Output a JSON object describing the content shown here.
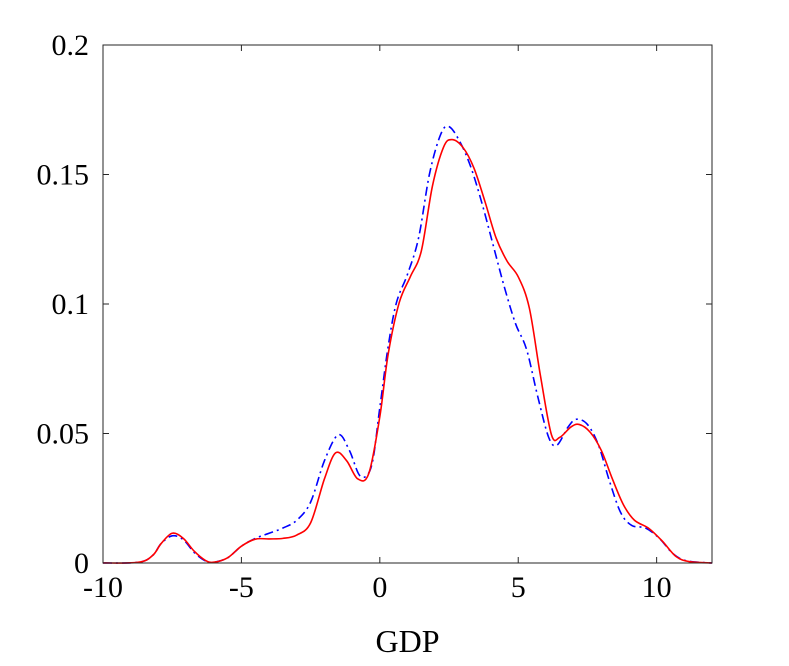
{
  "chart_data": {
    "type": "line",
    "xlabel": "GDP",
    "ylabel": "",
    "xlim": [
      -10,
      12
    ],
    "ylim": [
      0,
      0.2
    ],
    "grid": false,
    "legend": "none",
    "xticks": [
      -10,
      -5,
      0,
      5,
      10
    ],
    "xtick_labels": [
      "-10",
      "-5",
      "0",
      "5",
      "10"
    ],
    "yticks": [
      0,
      0.05,
      0.1,
      0.15,
      0.2
    ],
    "ytick_labels": [
      "0",
      "0.05",
      "0.1",
      "0.15",
      "0.2"
    ],
    "series": [
      {
        "color": "#0000ff",
        "style": "dashdot",
        "points": [
          [
            -10,
            0
          ],
          [
            -8.7,
            0.0003
          ],
          [
            -8.2,
            0.003
          ],
          [
            -7.9,
            0.0075
          ],
          [
            -7.5,
            0.0105
          ],
          [
            -7.1,
            0.009
          ],
          [
            -6.7,
            0.004
          ],
          [
            -6.3,
            0.0008
          ],
          [
            -6.0,
            0.0003
          ],
          [
            -5.5,
            0.002
          ],
          [
            -5.0,
            0.0065
          ],
          [
            -4.5,
            0.0095
          ],
          [
            -4.0,
            0.0115
          ],
          [
            -3.5,
            0.0135
          ],
          [
            -3.0,
            0.0165
          ],
          [
            -2.5,
            0.0235
          ],
          [
            -2.0,
            0.0395
          ],
          [
            -1.5,
            0.0495
          ],
          [
            -1.1,
            0.0435
          ],
          [
            -0.7,
            0.0335
          ],
          [
            -0.3,
            0.0375
          ],
          [
            0.0,
            0.06
          ],
          [
            0.3,
            0.0835
          ],
          [
            0.6,
            0.1005
          ],
          [
            1.0,
            0.1115
          ],
          [
            1.4,
            0.1255
          ],
          [
            1.8,
            0.1505
          ],
          [
            2.2,
            0.1655
          ],
          [
            2.5,
            0.1685
          ],
          [
            2.9,
            0.1625
          ],
          [
            3.3,
            0.1525
          ],
          [
            3.7,
            0.1385
          ],
          [
            4.1,
            0.1225
          ],
          [
            4.5,
            0.1065
          ],
          [
            4.9,
            0.0925
          ],
          [
            5.3,
            0.0825
          ],
          [
            5.7,
            0.0645
          ],
          [
            6.1,
            0.0485
          ],
          [
            6.4,
            0.0455
          ],
          [
            6.8,
            0.0525
          ],
          [
            7.1,
            0.0555
          ],
          [
            7.5,
            0.0535
          ],
          [
            7.9,
            0.0455
          ],
          [
            8.3,
            0.0315
          ],
          [
            8.7,
            0.0195
          ],
          [
            9.1,
            0.0145
          ],
          [
            9.6,
            0.0135
          ],
          [
            10.1,
            0.0095
          ],
          [
            10.6,
            0.0035
          ],
          [
            11.1,
            0.0008
          ],
          [
            12,
            0
          ]
        ]
      },
      {
        "color": "#ff0000",
        "style": "solid",
        "points": [
          [
            -10,
            0
          ],
          [
            -8.7,
            0.0003
          ],
          [
            -8.2,
            0.003
          ],
          [
            -7.9,
            0.0075
          ],
          [
            -7.5,
            0.0115
          ],
          [
            -7.1,
            0.0095
          ],
          [
            -6.7,
            0.0045
          ],
          [
            -6.3,
            0.001
          ],
          [
            -6.0,
            0.0003
          ],
          [
            -5.5,
            0.002
          ],
          [
            -5.0,
            0.0065
          ],
          [
            -4.5,
            0.0092
          ],
          [
            -4.0,
            0.0093
          ],
          [
            -3.5,
            0.0095
          ],
          [
            -3.0,
            0.0108
          ],
          [
            -2.5,
            0.0155
          ],
          [
            -2.0,
            0.0325
          ],
          [
            -1.6,
            0.0425
          ],
          [
            -1.2,
            0.0395
          ],
          [
            -0.8,
            0.0325
          ],
          [
            -0.4,
            0.0345
          ],
          [
            0.0,
            0.0565
          ],
          [
            0.3,
            0.0805
          ],
          [
            0.7,
            0.1005
          ],
          [
            1.1,
            0.1105
          ],
          [
            1.5,
            0.1205
          ],
          [
            1.9,
            0.1455
          ],
          [
            2.3,
            0.1605
          ],
          [
            2.6,
            0.1635
          ],
          [
            3.0,
            0.1605
          ],
          [
            3.4,
            0.1525
          ],
          [
            3.8,
            0.1395
          ],
          [
            4.2,
            0.1255
          ],
          [
            4.6,
            0.1165
          ],
          [
            5.0,
            0.1105
          ],
          [
            5.4,
            0.0985
          ],
          [
            5.8,
            0.0725
          ],
          [
            6.2,
            0.0495
          ],
          [
            6.5,
            0.0485
          ],
          [
            6.9,
            0.0525
          ],
          [
            7.2,
            0.0535
          ],
          [
            7.6,
            0.0505
          ],
          [
            8.0,
            0.0435
          ],
          [
            8.4,
            0.0325
          ],
          [
            8.8,
            0.0225
          ],
          [
            9.2,
            0.0165
          ],
          [
            9.7,
            0.0135
          ],
          [
            10.2,
            0.0085
          ],
          [
            10.7,
            0.0025
          ],
          [
            11.2,
            0.0005
          ],
          [
            12,
            0
          ]
        ]
      }
    ]
  }
}
